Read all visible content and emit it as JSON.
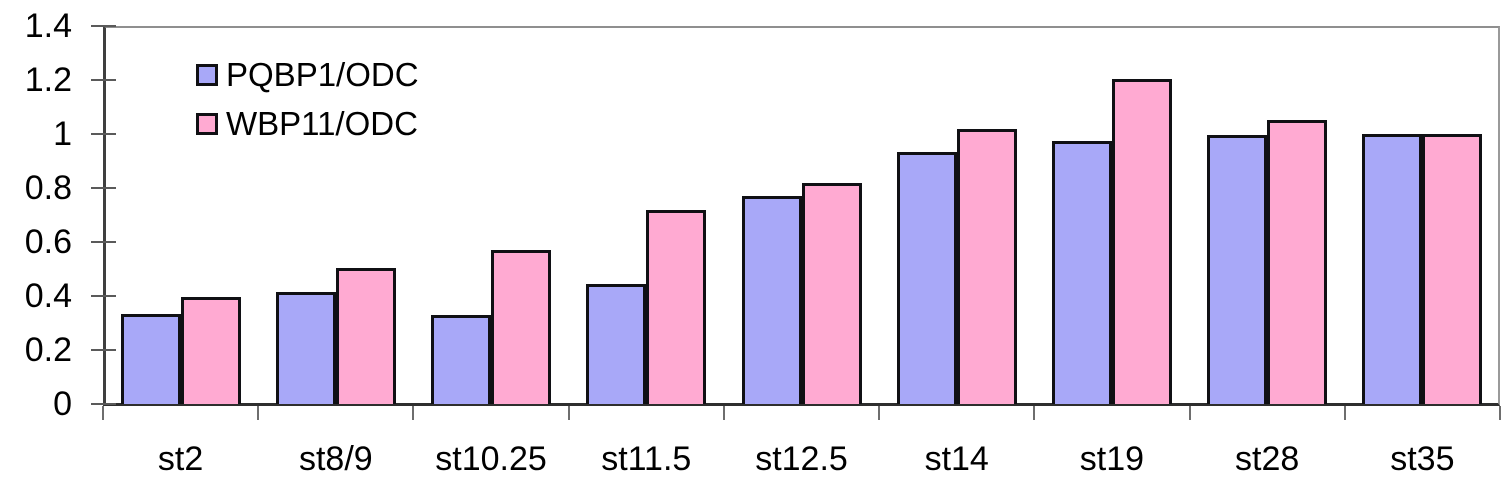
{
  "chart_data": {
    "type": "bar",
    "title": "",
    "xlabel": "",
    "ylabel": "",
    "categories": [
      "st2",
      "st8/9",
      "st10.25",
      "st11.5",
      "st12.5",
      "st14",
      "st19",
      "st28",
      "st35"
    ],
    "series": [
      {
        "name": "PQBP1/ODC",
        "color": "#A8A8F8",
        "values": [
          0.335,
          0.415,
          0.33,
          0.445,
          0.77,
          0.935,
          0.975,
          0.995,
          1.0
        ]
      },
      {
        "name": "WBP11/ODC",
        "color": "#FFAAD2",
        "values": [
          0.395,
          0.505,
          0.57,
          0.72,
          0.82,
          1.02,
          1.205,
          1.05,
          1.0
        ]
      }
    ],
    "ylim": [
      0,
      1.4
    ],
    "yticks": [
      0,
      0.2,
      0.4,
      0.6,
      0.8,
      1,
      1.2,
      1.4
    ],
    "ytick_labels": [
      "0",
      "0.2",
      "0.4",
      "0.6",
      "0.8",
      "1",
      "1.2",
      "1.4"
    ],
    "grid": false,
    "legend_position": "inside-top-left",
    "bar_border_color": "#101014",
    "axis_color": "#3f3f3f",
    "plot_border_color": "#9a9a9a"
  },
  "legend": {
    "items": [
      {
        "label": "PQBP1/ODC",
        "color": "#A8A8F8"
      },
      {
        "label": "WBP11/ODC",
        "color": "#FFAAD2"
      }
    ]
  }
}
